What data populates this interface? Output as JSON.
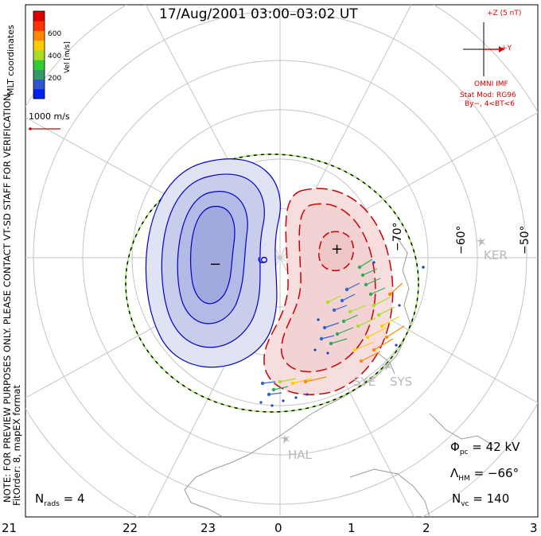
{
  "title": "17/Aug/2001 03:00–03:02 UT",
  "side_note": "NOTE: FOR PREVIEW PURPOSES ONLY. PLEASE CONTACT VT-SD STAFF FOR VERIFICATION.",
  "fit_note": "FitOrder: 8, mapEX format",
  "coord_label": "MLT coordinates",
  "velocity_scale": {
    "label": "Vel [m/s]",
    "ticks": [
      "600",
      "400",
      "200"
    ],
    "colors": [
      "#0022ee",
      "#3355cc",
      "#339966",
      "#33cc33",
      "#aadd22",
      "#ffcc00",
      "#ff8800",
      "#ff3300",
      "#dd0000"
    ]
  },
  "reference_vector": "1000 m/s",
  "imf": {
    "z_label": "+Z (5 nT)",
    "y_label": "+Y",
    "source": "OMNI IMF",
    "model_line1": "Stat Mod: RG96",
    "model_line2": "By−, 4<BT<6"
  },
  "latitude_labels": [
    "−70°",
    "−60°",
    "−50°"
  ],
  "potential_label": "6",
  "min_marker": "−",
  "max_marker": "+",
  "stations": [
    "KER",
    "SYE",
    "SYS",
    "HAL"
  ],
  "stats": {
    "phi_pc": {
      "sym": "Φ",
      "sub": "pc",
      "value": "= 42 kV"
    },
    "lambda_hm": {
      "sym": "Λ",
      "sub": "HM",
      "value": "= −66°"
    },
    "n_vc": {
      "sym": "N",
      "sub": "vc",
      "value": "= 140"
    },
    "n_rads": {
      "sym": "N",
      "sub": "rads",
      "value": "= 4"
    }
  },
  "mlt_ticks": [
    "21",
    "22",
    "23",
    "0",
    "1",
    "2",
    "3"
  ]
}
